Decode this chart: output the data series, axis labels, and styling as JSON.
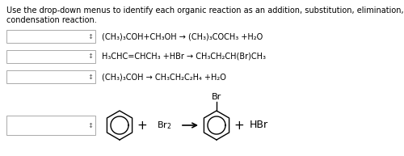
{
  "title_line1": "Use the drop-down menus to identify each organic reaction as an addition, substitution, elimination, or",
  "title_line2": "condensation reaction.",
  "reactions": [
    "(CH₃)₃COH+CH₃OH → (CH₃)₃COCH₃ +H₂O",
    "H₃CHC=CHCH₃ +HBr → CH₃CH₂CH(Br)CH₃",
    "(CH₃)₃COH → CH₃CH₂C₂H₄ +H₂O"
  ],
  "bg_color": "#ffffff",
  "text_color": "#000000",
  "box_edge_color": "#aaaaaa",
  "title_fontsize": 7.0,
  "reaction_fontsize": 7.0,
  "dropdown_arrow": "↕"
}
